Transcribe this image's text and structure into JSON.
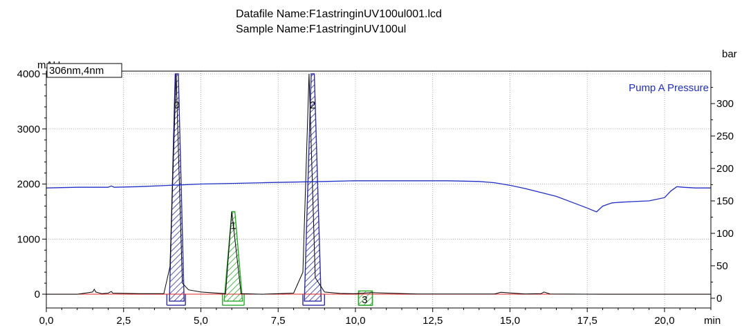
{
  "header": {
    "datafile": "Datafile Name:F1astringinUV100ul001.lcd",
    "sample": "Sample Name:F1astringinUV100ul"
  },
  "chart_data": {
    "type": "line",
    "left_unit": "mAU",
    "right_unit": "bar",
    "x_unit": "min",
    "detector_label": "306nm,4nm",
    "legend": "Pump A Pressure",
    "xlim": [
      0,
      21.5
    ],
    "ylim_left": [
      -250,
      4050
    ],
    "ylim_right": [
      -15,
      350
    ],
    "x_ticks": [
      0,
      2.5,
      5,
      7.5,
      10,
      12.5,
      15,
      17.5,
      20
    ],
    "x_tick_labels": [
      "0,0",
      "2,5",
      "5,0",
      "7,5",
      "10,0",
      "12,5",
      "15,0",
      "17,5",
      "20,0"
    ],
    "left_ticks": [
      0,
      1000,
      2000,
      3000,
      4000
    ],
    "left_tick_labels": [
      "0",
      "1000",
      "2000",
      "3000",
      "4000"
    ],
    "right_ticks": [
      0,
      50,
      100,
      150,
      200,
      250,
      300
    ],
    "right_tick_labels": [
      "0",
      "50",
      "100",
      "150",
      "200",
      "250",
      "300"
    ],
    "grid": true,
    "colors": {
      "pressure": "#1f2ec8",
      "chromatogram": "#000000",
      "baseline": "#e02020",
      "peak_blue": "#2a2aa8",
      "peak_green": "#22aa22"
    },
    "series": [
      {
        "name": "Pump A Pressure",
        "axis": "right",
        "x": [
          0,
          1,
          2,
          2.1,
          2.2,
          3,
          4,
          5,
          6,
          7,
          8,
          9,
          10,
          11,
          12,
          13,
          14,
          14.5,
          15,
          15.5,
          16,
          16.5,
          17,
          17.5,
          17.8,
          18,
          18.3,
          18.6,
          19,
          19.5,
          20,
          20.2,
          20.4,
          20.6,
          21,
          21.5
        ],
        "y": [
          170,
          171,
          171,
          173,
          171,
          172,
          174,
          176,
          177,
          178,
          179,
          180,
          181,
          181,
          181,
          181,
          180,
          178,
          174,
          169,
          163,
          157,
          148,
          139,
          133,
          142,
          147,
          148,
          149,
          150,
          155,
          165,
          172,
          171,
          170,
          170
        ]
      },
      {
        "name": "306nm,4nm",
        "axis": "left",
        "x": [
          0,
          1.0,
          1.5,
          1.55,
          1.6,
          1.8,
          2.0,
          2.1,
          2.15,
          2.6,
          3.0,
          3.8,
          4.0,
          4.2,
          4.4,
          4.6,
          5.0,
          5.8,
          6.0,
          6.3,
          7.0,
          8.0,
          8.3,
          8.5,
          8.7,
          9.0,
          9.5,
          10.0,
          10.5,
          12.0,
          14.5,
          14.7,
          15.5,
          16.0,
          16.1,
          16.3,
          18.0,
          21.5
        ],
        "y": [
          0,
          0,
          40,
          90,
          40,
          10,
          20,
          50,
          20,
          15,
          10,
          10,
          500,
          4000,
          200,
          80,
          40,
          10,
          1500,
          10,
          0,
          20,
          400,
          4000,
          300,
          40,
          15,
          10,
          30,
          5,
          5,
          35,
          5,
          10,
          40,
          5,
          0,
          0
        ]
      }
    ],
    "peaks": [
      {
        "label": "0",
        "start": 3.9,
        "apex": 4.22,
        "end": 4.5,
        "height": 4000,
        "color": "blue"
      },
      {
        "label": "1",
        "start": 5.7,
        "apex": 6.05,
        "end": 6.4,
        "height": 1500,
        "color": "green"
      },
      {
        "label": "2",
        "start": 8.3,
        "apex": 8.62,
        "end": 9.0,
        "height": 4000,
        "color": "blue"
      },
      {
        "label": "3",
        "start": 10.1,
        "apex": 10.3,
        "end": 10.55,
        "height": 35,
        "color": "green"
      }
    ]
  }
}
